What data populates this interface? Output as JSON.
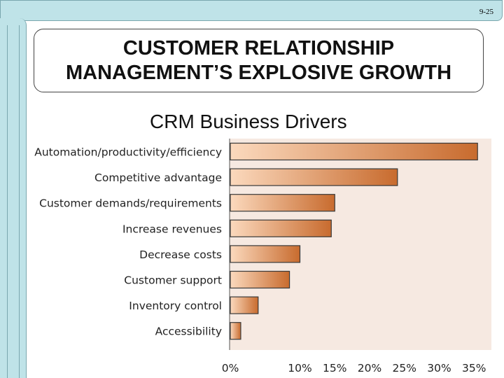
{
  "slide_number": "9-25",
  "title_lines": [
    "CUSTOMER RELATIONSHIP",
    "MANAGEMENT’S EXPLOSIVE GROWTH"
  ],
  "subtitle": "CRM Business Drivers",
  "chart_data": {
    "type": "bar",
    "orientation": "horizontal",
    "title": "CRM Business Drivers",
    "categories": [
      "Automation/productivity/efficiency",
      "Competitive advantage",
      "Customer demands/requirements",
      "Increase revenues",
      "Decrease costs",
      "Customer support",
      "Inventory control",
      "Accessibility"
    ],
    "values": [
      35.5,
      24,
      15,
      14.5,
      10,
      8.5,
      4,
      1.5
    ],
    "xlim": [
      0,
      35
    ],
    "xticks": [
      "0%",
      "10%",
      "15%",
      "20%",
      "25%",
      "30%",
      "35%"
    ],
    "xtick_values": [
      0,
      10,
      15,
      20,
      25,
      30,
      35
    ],
    "grid": false,
    "colors": {
      "bar_start": "#fbd9bd",
      "bar_end": "#c86b2e",
      "bar_edge": "#3a3a3a",
      "plot_bg": "#f6e9e1"
    }
  }
}
